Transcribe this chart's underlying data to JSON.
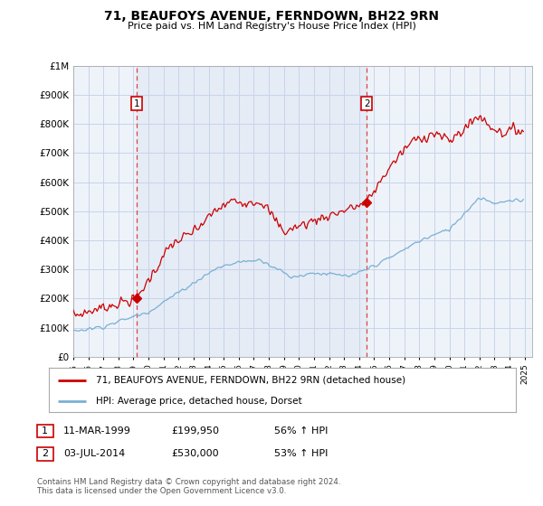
{
  "title": "71, BEAUFOYS AVENUE, FERNDOWN, BH22 9RN",
  "subtitle": "Price paid vs. HM Land Registry's House Price Index (HPI)",
  "ylim": [
    0,
    1000000
  ],
  "yticks": [
    0,
    100000,
    200000,
    300000,
    400000,
    500000,
    600000,
    700000,
    800000,
    900000,
    1000000
  ],
  "xlim_start": 1995.0,
  "xlim_end": 2025.5,
  "background_color": "#ffffff",
  "plot_bg_color": "#eef3fa",
  "grid_color": "#c8d4e8",
  "red_line_color": "#cc0000",
  "blue_line_color": "#7bafd4",
  "dashed_marker_color": "#dd4444",
  "ann1_x": 1999.2,
  "ann1_y": 199950,
  "ann2_x": 2014.5,
  "ann2_y": 530000,
  "legend_line1": "71, BEAUFOYS AVENUE, FERNDOWN, BH22 9RN (detached house)",
  "legend_line2": "HPI: Average price, detached house, Dorset",
  "footer1": "Contains HM Land Registry data © Crown copyright and database right 2024.",
  "footer2": "This data is licensed under the Open Government Licence v3.0.",
  "table_row1_num": "1",
  "table_row1_date": "11-MAR-1999",
  "table_row1_price": "£199,950",
  "table_row1_hpi": "56% ↑ HPI",
  "table_row2_num": "2",
  "table_row2_date": "03-JUL-2014",
  "table_row2_price": "£530,000",
  "table_row2_hpi": "53% ↑ HPI"
}
